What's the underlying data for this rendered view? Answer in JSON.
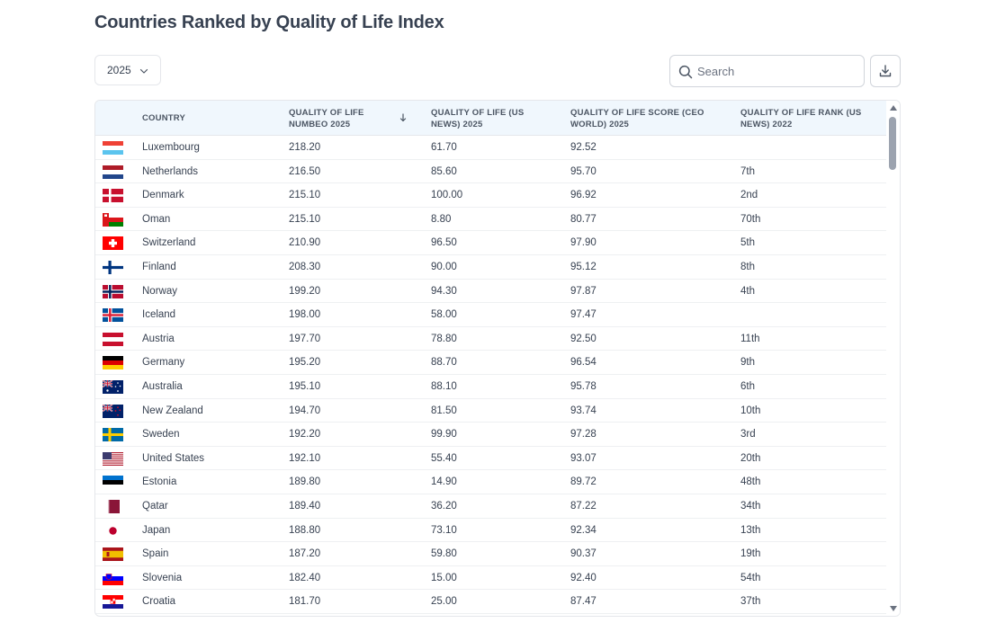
{
  "title": "Countries Ranked by Quality of Life Index",
  "year_select": {
    "value": "2025"
  },
  "search": {
    "placeholder": "Search"
  },
  "table": {
    "headers": {
      "country": "COUNTRY",
      "numbeo": "QUALITY OF LIFE NUMBEO 2025",
      "usnews": "QUALITY OF LIFE (US NEWS) 2025",
      "ceo": "QUALITY OF LIFE SCORE (CEO WORLD) 2025",
      "rank": "QUALITY OF LIFE RANK (US NEWS) 2022"
    },
    "sort": {
      "column": "numbeo",
      "direction": "desc"
    },
    "rows": [
      {
        "flag": "luxembourg",
        "country": "Luxembourg",
        "numbeo": "218.20",
        "usnews": "61.70",
        "ceo": "92.52",
        "rank": ""
      },
      {
        "flag": "netherlands",
        "country": "Netherlands",
        "numbeo": "216.50",
        "usnews": "85.60",
        "ceo": "95.70",
        "rank": "7th"
      },
      {
        "flag": "denmark",
        "country": "Denmark",
        "numbeo": "215.10",
        "usnews": "100.00",
        "ceo": "96.92",
        "rank": "2nd"
      },
      {
        "flag": "oman",
        "country": "Oman",
        "numbeo": "215.10",
        "usnews": "8.80",
        "ceo": "80.77",
        "rank": "70th"
      },
      {
        "flag": "switzerland",
        "country": "Switzerland",
        "numbeo": "210.90",
        "usnews": "96.50",
        "ceo": "97.90",
        "rank": "5th"
      },
      {
        "flag": "finland",
        "country": "Finland",
        "numbeo": "208.30",
        "usnews": "90.00",
        "ceo": "95.12",
        "rank": "8th"
      },
      {
        "flag": "norway",
        "country": "Norway",
        "numbeo": "199.20",
        "usnews": "94.30",
        "ceo": "97.87",
        "rank": "4th"
      },
      {
        "flag": "iceland",
        "country": "Iceland",
        "numbeo": "198.00",
        "usnews": "58.00",
        "ceo": "97.47",
        "rank": ""
      },
      {
        "flag": "austria",
        "country": "Austria",
        "numbeo": "197.70",
        "usnews": "78.80",
        "ceo": "92.50",
        "rank": "11th"
      },
      {
        "flag": "germany",
        "country": "Germany",
        "numbeo": "195.20",
        "usnews": "88.70",
        "ceo": "96.54",
        "rank": "9th"
      },
      {
        "flag": "australia",
        "country": "Australia",
        "numbeo": "195.10",
        "usnews": "88.10",
        "ceo": "95.78",
        "rank": "6th"
      },
      {
        "flag": "new-zealand",
        "country": "New Zealand",
        "numbeo": "194.70",
        "usnews": "81.50",
        "ceo": "93.74",
        "rank": "10th"
      },
      {
        "flag": "sweden",
        "country": "Sweden",
        "numbeo": "192.20",
        "usnews": "99.90",
        "ceo": "97.28",
        "rank": "3rd"
      },
      {
        "flag": "united-states",
        "country": "United States",
        "numbeo": "192.10",
        "usnews": "55.40",
        "ceo": "93.07",
        "rank": "20th"
      },
      {
        "flag": "estonia",
        "country": "Estonia",
        "numbeo": "189.80",
        "usnews": "14.90",
        "ceo": "89.72",
        "rank": "48th"
      },
      {
        "flag": "qatar",
        "country": "Qatar",
        "numbeo": "189.40",
        "usnews": "36.20",
        "ceo": "87.22",
        "rank": "34th"
      },
      {
        "flag": "japan",
        "country": "Japan",
        "numbeo": "188.80",
        "usnews": "73.10",
        "ceo": "92.34",
        "rank": "13th"
      },
      {
        "flag": "spain",
        "country": "Spain",
        "numbeo": "187.20",
        "usnews": "59.80",
        "ceo": "90.37",
        "rank": "19th"
      },
      {
        "flag": "slovenia",
        "country": "Slovenia",
        "numbeo": "182.40",
        "usnews": "15.00",
        "ceo": "92.40",
        "rank": "54th"
      },
      {
        "flag": "croatia",
        "country": "Croatia",
        "numbeo": "181.70",
        "usnews": "25.00",
        "ceo": "87.47",
        "rank": "37th"
      }
    ]
  },
  "colors": {
    "header_bg": "#f0f7fd",
    "title": "#374151",
    "border": "#e5e7eb",
    "scroll_thumb": "#9ca3af"
  }
}
